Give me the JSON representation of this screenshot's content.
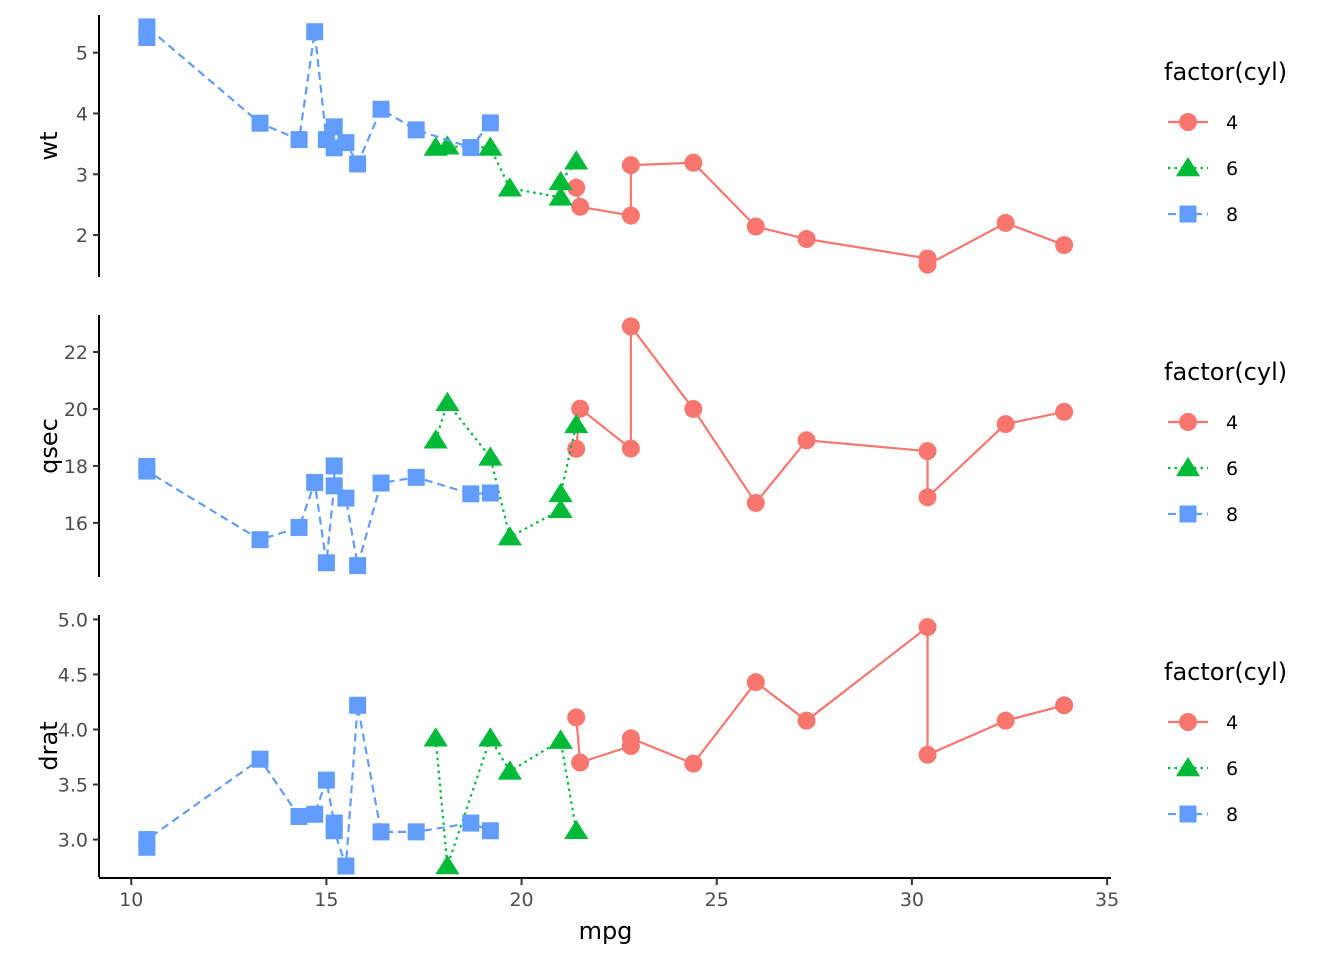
{
  "chart_data": {
    "type": "line",
    "xlabel": "mpg",
    "x_ticks": [
      10,
      15,
      20,
      25,
      30,
      35
    ],
    "xlim": [
      9.2,
      35.1
    ],
    "legend": {
      "title": "factor(cyl)",
      "placement": "right",
      "items": [
        {
          "label": "4",
          "color": "#F8766D",
          "shape": "circle",
          "linetype": "solid"
        },
        {
          "label": "6",
          "color": "#00BA38",
          "shape": "triangle",
          "linetype": "dotted"
        },
        {
          "label": "8",
          "color": "#619CFF",
          "shape": "square",
          "linetype": "dashed"
        }
      ]
    },
    "grid": false,
    "panels": [
      {
        "ylabel": "wt",
        "ylim": [
          1.31,
          5.62
        ],
        "y_ticks": [
          2,
          3,
          4,
          5
        ],
        "y_tick_labels": [
          "2",
          "3",
          "4",
          "5"
        ],
        "series": [
          {
            "name": "4",
            "points": [
              [
                21.4,
                2.78
              ],
              [
                21.5,
                2.465
              ],
              [
                22.8,
                2.32
              ],
              [
                22.8,
                3.15
              ],
              [
                24.4,
                3.19
              ],
              [
                26.0,
                2.14
              ],
              [
                27.3,
                1.935
              ],
              [
                30.4,
                1.615
              ],
              [
                30.4,
                1.513
              ],
              [
                32.4,
                2.2
              ],
              [
                33.9,
                1.835
              ]
            ]
          },
          {
            "name": "6",
            "points": [
              [
                17.8,
                3.44
              ],
              [
                18.1,
                3.46
              ],
              [
                19.2,
                3.44
              ],
              [
                19.7,
                2.77
              ],
              [
                21.0,
                2.62
              ],
              [
                21.0,
                2.875
              ],
              [
                21.4,
                3.215
              ]
            ]
          },
          {
            "name": "8",
            "points": [
              [
                10.4,
                5.25
              ],
              [
                10.4,
                5.424
              ],
              [
                13.3,
                3.84
              ],
              [
                14.3,
                3.57
              ],
              [
                14.7,
                5.345
              ],
              [
                15.0,
                3.57
              ],
              [
                15.2,
                3.435
              ],
              [
                15.2,
                3.78
              ],
              [
                15.5,
                3.52
              ],
              [
                15.8,
                3.17
              ],
              [
                16.4,
                4.07
              ],
              [
                17.3,
                3.73
              ],
              [
                18.7,
                3.44
              ],
              [
                19.2,
                3.845
              ]
            ]
          }
        ]
      },
      {
        "ylabel": "qsec",
        "ylim": [
          14.1,
          23.3
        ],
        "y_ticks": [
          16,
          18,
          20,
          22
        ],
        "y_tick_labels": [
          "16",
          "18",
          "20",
          "22"
        ],
        "series": [
          {
            "name": "4",
            "points": [
              [
                21.4,
                18.6
              ],
              [
                21.5,
                20.01
              ],
              [
                22.8,
                18.61
              ],
              [
                22.8,
                22.9
              ],
              [
                24.4,
                20.0
              ],
              [
                26.0,
                16.7
              ],
              [
                27.3,
                18.9
              ],
              [
                30.4,
                18.52
              ],
              [
                30.4,
                16.9
              ],
              [
                32.4,
                19.47
              ],
              [
                33.9,
                19.9
              ]
            ]
          },
          {
            "name": "6",
            "points": [
              [
                17.8,
                18.9
              ],
              [
                18.1,
                20.22
              ],
              [
                19.2,
                18.3
              ],
              [
                19.7,
                15.5
              ],
              [
                21.0,
                16.46
              ],
              [
                21.0,
                17.02
              ],
              [
                21.4,
                19.44
              ]
            ]
          },
          {
            "name": "8",
            "points": [
              [
                10.4,
                17.98
              ],
              [
                10.4,
                17.82
              ],
              [
                13.3,
                15.41
              ],
              [
                14.3,
                15.84
              ],
              [
                14.7,
                17.42
              ],
              [
                15.0,
                14.6
              ],
              [
                15.2,
                17.3
              ],
              [
                15.2,
                18.0
              ],
              [
                15.5,
                16.87
              ],
              [
                15.8,
                14.5
              ],
              [
                16.4,
                17.4
              ],
              [
                17.3,
                17.6
              ],
              [
                18.7,
                17.02
              ],
              [
                19.2,
                17.05
              ]
            ]
          }
        ]
      },
      {
        "ylabel": "drat",
        "ylim": [
          2.66,
          5.04
        ],
        "y_ticks": [
          3.0,
          3.5,
          4.0,
          4.5,
          5.0
        ],
        "y_tick_labels": [
          "3.0",
          "3.5",
          "4.0",
          "4.5",
          "5.0"
        ],
        "series": [
          {
            "name": "4",
            "points": [
              [
                21.4,
                4.11
              ],
              [
                21.5,
                3.7
              ],
              [
                22.8,
                3.85
              ],
              [
                22.8,
                3.92
              ],
              [
                24.4,
                3.69
              ],
              [
                26.0,
                4.43
              ],
              [
                27.3,
                4.08
              ],
              [
                30.4,
                4.93
              ],
              [
                30.4,
                3.77
              ],
              [
                32.4,
                4.08
              ],
              [
                33.9,
                4.22
              ]
            ]
          },
          {
            "name": "6",
            "points": [
              [
                17.8,
                3.92
              ],
              [
                18.1,
                2.76
              ],
              [
                19.2,
                3.92
              ],
              [
                19.7,
                3.62
              ],
              [
                21.0,
                3.9
              ],
              [
                21.0,
                3.9
              ],
              [
                21.4,
                3.08
              ]
            ]
          },
          {
            "name": "8",
            "points": [
              [
                10.4,
                2.93
              ],
              [
                10.4,
                3.0
              ],
              [
                13.3,
                3.73
              ],
              [
                14.3,
                3.21
              ],
              [
                14.7,
                3.23
              ],
              [
                15.0,
                3.54
              ],
              [
                15.2,
                3.15
              ],
              [
                15.2,
                3.08
              ],
              [
                15.5,
                2.76
              ],
              [
                15.8,
                4.22
              ],
              [
                16.4,
                3.07
              ],
              [
                17.3,
                3.07
              ],
              [
                18.7,
                3.15
              ],
              [
                19.2,
                3.08
              ]
            ]
          }
        ]
      }
    ]
  }
}
